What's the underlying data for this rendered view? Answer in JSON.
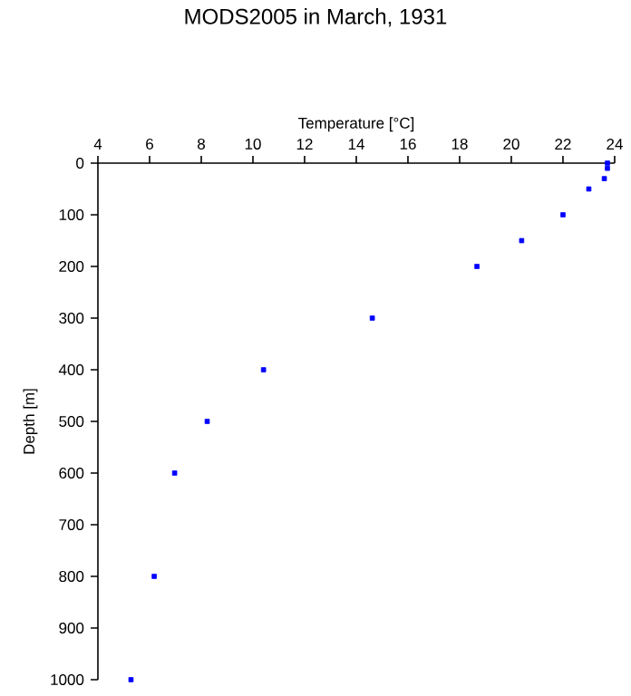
{
  "chart_data": {
    "type": "scatter",
    "title": "MODS2005 in March, 1931",
    "xlabel": "Temperature [°C]",
    "ylabel": "Depth [m]",
    "series": [
      {
        "color": "#0000ff",
        "x": [
          23.72,
          23.72,
          23.6,
          23.0,
          22.0,
          20.4,
          18.67,
          14.62,
          10.41,
          8.23,
          6.97,
          6.18,
          5.28
        ],
        "values": [
          0,
          10,
          30,
          50,
          100,
          150,
          200,
          300,
          400,
          500,
          600,
          800,
          1000
        ]
      }
    ],
    "xlim": [
      4,
      24
    ],
    "xticks": [
      4,
      6,
      8,
      10,
      12,
      14,
      16,
      18,
      20,
      22,
      24
    ],
    "ylim": [
      1000,
      0
    ],
    "yticks": [
      0,
      100,
      200,
      300,
      400,
      500,
      600,
      700,
      800,
      900,
      1000
    ],
    "marker": "square"
  }
}
